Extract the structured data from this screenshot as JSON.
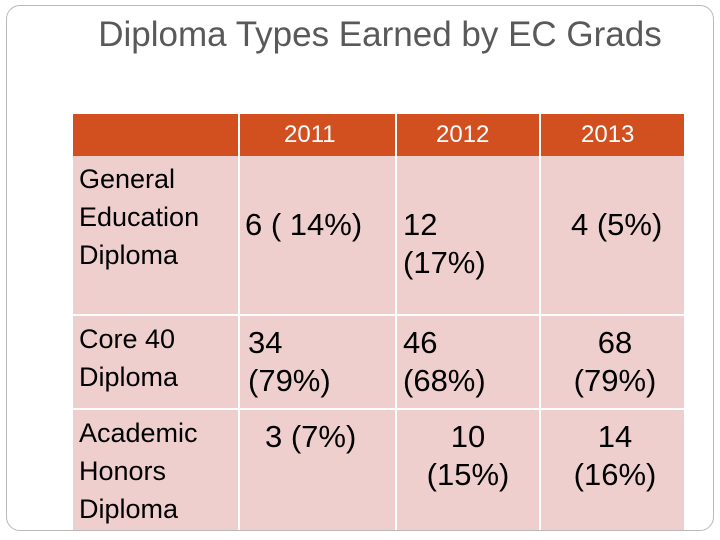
{
  "title": "Diploma Types Earned by EC Grads",
  "table": {
    "columns": [
      "",
      "2011",
      "2012",
      "2013"
    ],
    "rows": [
      {
        "label": "General\nEducation\nDiploma",
        "values": [
          "6 ( 14%)",
          "12\n(17%)",
          "4 (5%)"
        ]
      },
      {
        "label": "Core 40\nDiploma",
        "values": [
          "34\n(79%)",
          "46\n(68%)",
          "68\n(79%)"
        ]
      },
      {
        "label": "Academic\nHonors\nDiploma",
        "values": [
          "3 (7%)",
          "10\n(15%)",
          "14\n(16%)"
        ]
      }
    ]
  },
  "colors": {
    "header": "#d2501f",
    "body": "#eecfcd",
    "title_text": "#595959"
  }
}
